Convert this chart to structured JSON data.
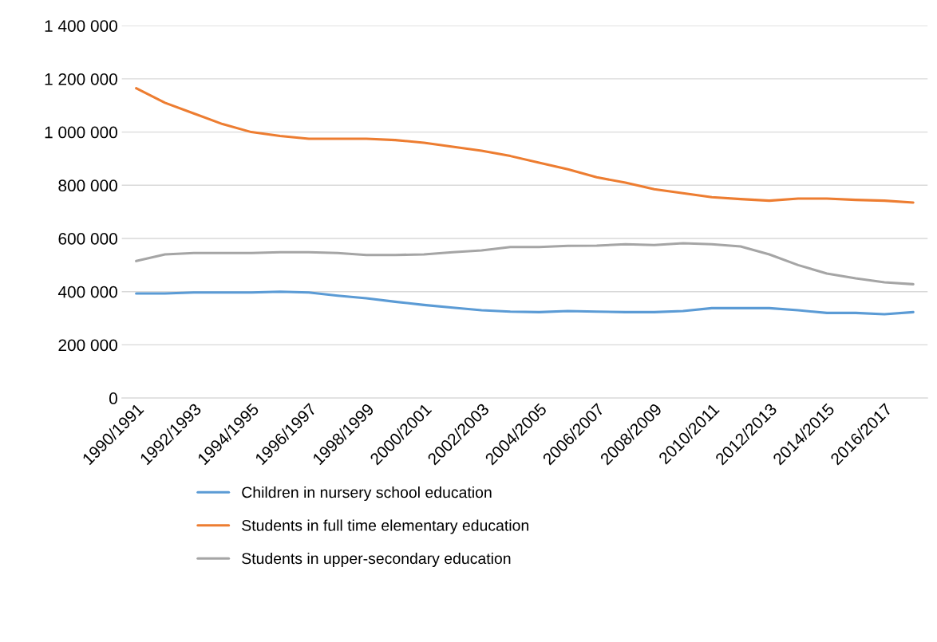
{
  "chart_data": {
    "type": "line",
    "categories": [
      "1990/1991",
      null,
      "1992/1993",
      null,
      "1994/1995",
      null,
      "1996/1997",
      null,
      "1998/1999",
      null,
      "2000/2001",
      null,
      "2002/2003",
      null,
      "2004/2005",
      null,
      "2006/2007",
      null,
      "2008/2009",
      null,
      "2010/2011",
      null,
      "2012/2013",
      null,
      "2014/2015",
      null,
      "2016/2017",
      null
    ],
    "series": [
      {
        "name": "Children in nursery school education",
        "color": "#5b9bd5",
        "values": [
          393000,
          393000,
          397000,
          397000,
          397000,
          400000,
          397000,
          385000,
          375000,
          362000,
          350000,
          340000,
          330000,
          325000,
          323000,
          327000,
          325000,
          323000,
          323000,
          327000,
          338000,
          338000,
          338000,
          330000,
          320000,
          320000,
          315000,
          323000
        ]
      },
      {
        "name": "Students in full time elementary education",
        "color": "#ed7d31",
        "values": [
          1165000,
          1110000,
          1070000,
          1030000,
          1000000,
          985000,
          975000,
          975000,
          975000,
          970000,
          960000,
          945000,
          930000,
          910000,
          885000,
          860000,
          830000,
          810000,
          785000,
          770000,
          755000,
          748000,
          742000,
          750000,
          750000,
          745000,
          742000,
          735000
        ]
      },
      {
        "name": "Students in upper-secondary education",
        "color": "#a5a5a5",
        "values": [
          515000,
          540000,
          545000,
          545000,
          545000,
          548000,
          548000,
          545000,
          538000,
          538000,
          540000,
          548000,
          555000,
          568000,
          568000,
          572000,
          573000,
          578000,
          575000,
          582000,
          578000,
          570000,
          540000,
          500000,
          468000,
          450000,
          435000,
          428000
        ]
      }
    ],
    "ylim": [
      0,
      1400000
    ],
    "yticks": [
      0,
      {
        "value": 200000,
        "label": "200 000"
      },
      {
        "value": 400000,
        "label": "400 000"
      },
      {
        "value": 600000,
        "label": "600 000"
      },
      {
        "value": 800000,
        "label": "800 000"
      },
      {
        "value": 1000000,
        "label": "1 000 000"
      },
      {
        "value": 1200000,
        "label": "1 200 000"
      },
      {
        "value": 1400000,
        "label": "1 400 000"
      }
    ],
    "grid": "y",
    "legend": "bottom",
    "marker": "none",
    "line_style": "solid"
  }
}
